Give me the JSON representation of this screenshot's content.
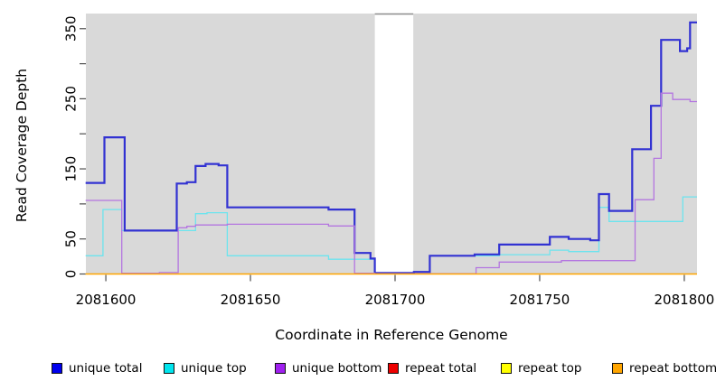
{
  "chart_data": {
    "type": "line",
    "step": true,
    "title": "",
    "xlabel": "Coordinate in Reference Genome",
    "ylabel": "Read Coverage Depth",
    "xlim": [
      2081593.1,
      2081804.4
    ],
    "ylim": [
      0,
      371.6
    ],
    "x_ticks": [
      2081600,
      2081650,
      2081700,
      2081750,
      2081800
    ],
    "y_ticks": [
      0,
      50,
      100,
      150,
      200,
      250,
      300,
      350
    ],
    "y_tick_labels": [
      "0",
      "50",
      "",
      "150",
      "",
      "250",
      "",
      "350"
    ],
    "plot_bg_color": "#d9d9d9",
    "gap_region": {
      "x_start": 2081693,
      "x_end": 2081706.3,
      "color": "#ffffff"
    },
    "grid": false,
    "legend_position": "bottom",
    "series": [
      {
        "name": "unique total",
        "legend_label": "unique total",
        "line_color": "#3232d2",
        "legend_color": "#0000ee",
        "line_width": 2.2,
        "z": 4,
        "points": [
          [
            2081593,
            130
          ],
          [
            2081599.5,
            195
          ],
          [
            2081606.5,
            62
          ],
          [
            2081624.5,
            129
          ],
          [
            2081628,
            131
          ],
          [
            2081631,
            154
          ],
          [
            2081634.5,
            157
          ],
          [
            2081639,
            155
          ],
          [
            2081642,
            95
          ],
          [
            2081677,
            92
          ],
          [
            2081686,
            30
          ],
          [
            2081691.5,
            22
          ],
          [
            2081693,
            1.5
          ],
          [
            2081706.5,
            3
          ],
          [
            2081712,
            26
          ],
          [
            2081727.5,
            28
          ],
          [
            2081736,
            42
          ],
          [
            2081753.5,
            53
          ],
          [
            2081760,
            50
          ],
          [
            2081767.5,
            48
          ],
          [
            2081770.5,
            114
          ],
          [
            2081774,
            90
          ],
          [
            2081782,
            178
          ],
          [
            2081788.5,
            240
          ],
          [
            2081792,
            334
          ],
          [
            2081798.5,
            318
          ],
          [
            2081801,
            322
          ],
          [
            2081802,
            359
          ],
          [
            2081804.4,
            359
          ]
        ]
      },
      {
        "name": "unique top",
        "legend_label": "unique top",
        "line_color": "#6ce4ee",
        "legend_color": "#00e5ee",
        "line_width": 1.3,
        "z": 3,
        "points": [
          [
            2081593,
            26
          ],
          [
            2081599,
            92
          ],
          [
            2081605.5,
            62
          ],
          [
            2081631,
            86
          ],
          [
            2081635,
            87.5
          ],
          [
            2081642,
            26
          ],
          [
            2081677,
            21
          ],
          [
            2081693,
            1.5
          ],
          [
            2081706.5,
            3
          ],
          [
            2081712,
            26
          ],
          [
            2081736,
            27.5
          ],
          [
            2081753.5,
            34
          ],
          [
            2081760,
            32
          ],
          [
            2081770.5,
            95
          ],
          [
            2081774,
            75
          ],
          [
            2081799.5,
            110
          ],
          [
            2081804.4,
            110
          ]
        ]
      },
      {
        "name": "unique bottom",
        "legend_label": "unique bottom",
        "line_color": "#b476e0",
        "legend_color": "#a020f0",
        "line_width": 1.3,
        "z": 5,
        "points": [
          [
            2081593,
            105
          ],
          [
            2081605.5,
            1
          ],
          [
            2081618.5,
            2
          ],
          [
            2081625,
            66
          ],
          [
            2081628,
            68
          ],
          [
            2081631,
            70
          ],
          [
            2081642,
            71
          ],
          [
            2081677,
            68.5
          ],
          [
            2081686,
            1
          ],
          [
            2081693,
            0.5
          ],
          [
            2081728,
            9
          ],
          [
            2081736,
            17
          ],
          [
            2081757.5,
            19
          ],
          [
            2081783,
            106
          ],
          [
            2081789.5,
            165
          ],
          [
            2081792,
            258
          ],
          [
            2081796,
            249
          ],
          [
            2081802,
            246
          ],
          [
            2081804.4,
            246
          ]
        ]
      },
      {
        "name": "repeat total",
        "legend_label": "repeat total",
        "line_color": "#e00000",
        "legend_color": "#ee0000",
        "line_width": 1.1,
        "z": 1,
        "points": [
          [
            2081593,
            0
          ],
          [
            2081804.4,
            0
          ]
        ]
      },
      {
        "name": "repeat top",
        "legend_label": "repeat top",
        "line_color": "#ffff00",
        "legend_color": "#ffff00",
        "line_width": 1.1,
        "z": 2,
        "points": [
          [
            2081593,
            0
          ],
          [
            2081804.4,
            0
          ]
        ]
      },
      {
        "name": "repeat bottom",
        "legend_label": "repeat bottom",
        "line_color": "#ffa500",
        "legend_color": "#ffa500",
        "line_width": 1.6,
        "z": 6,
        "points": [
          [
            2081593,
            0
          ],
          [
            2081804.4,
            0
          ]
        ]
      }
    ]
  }
}
